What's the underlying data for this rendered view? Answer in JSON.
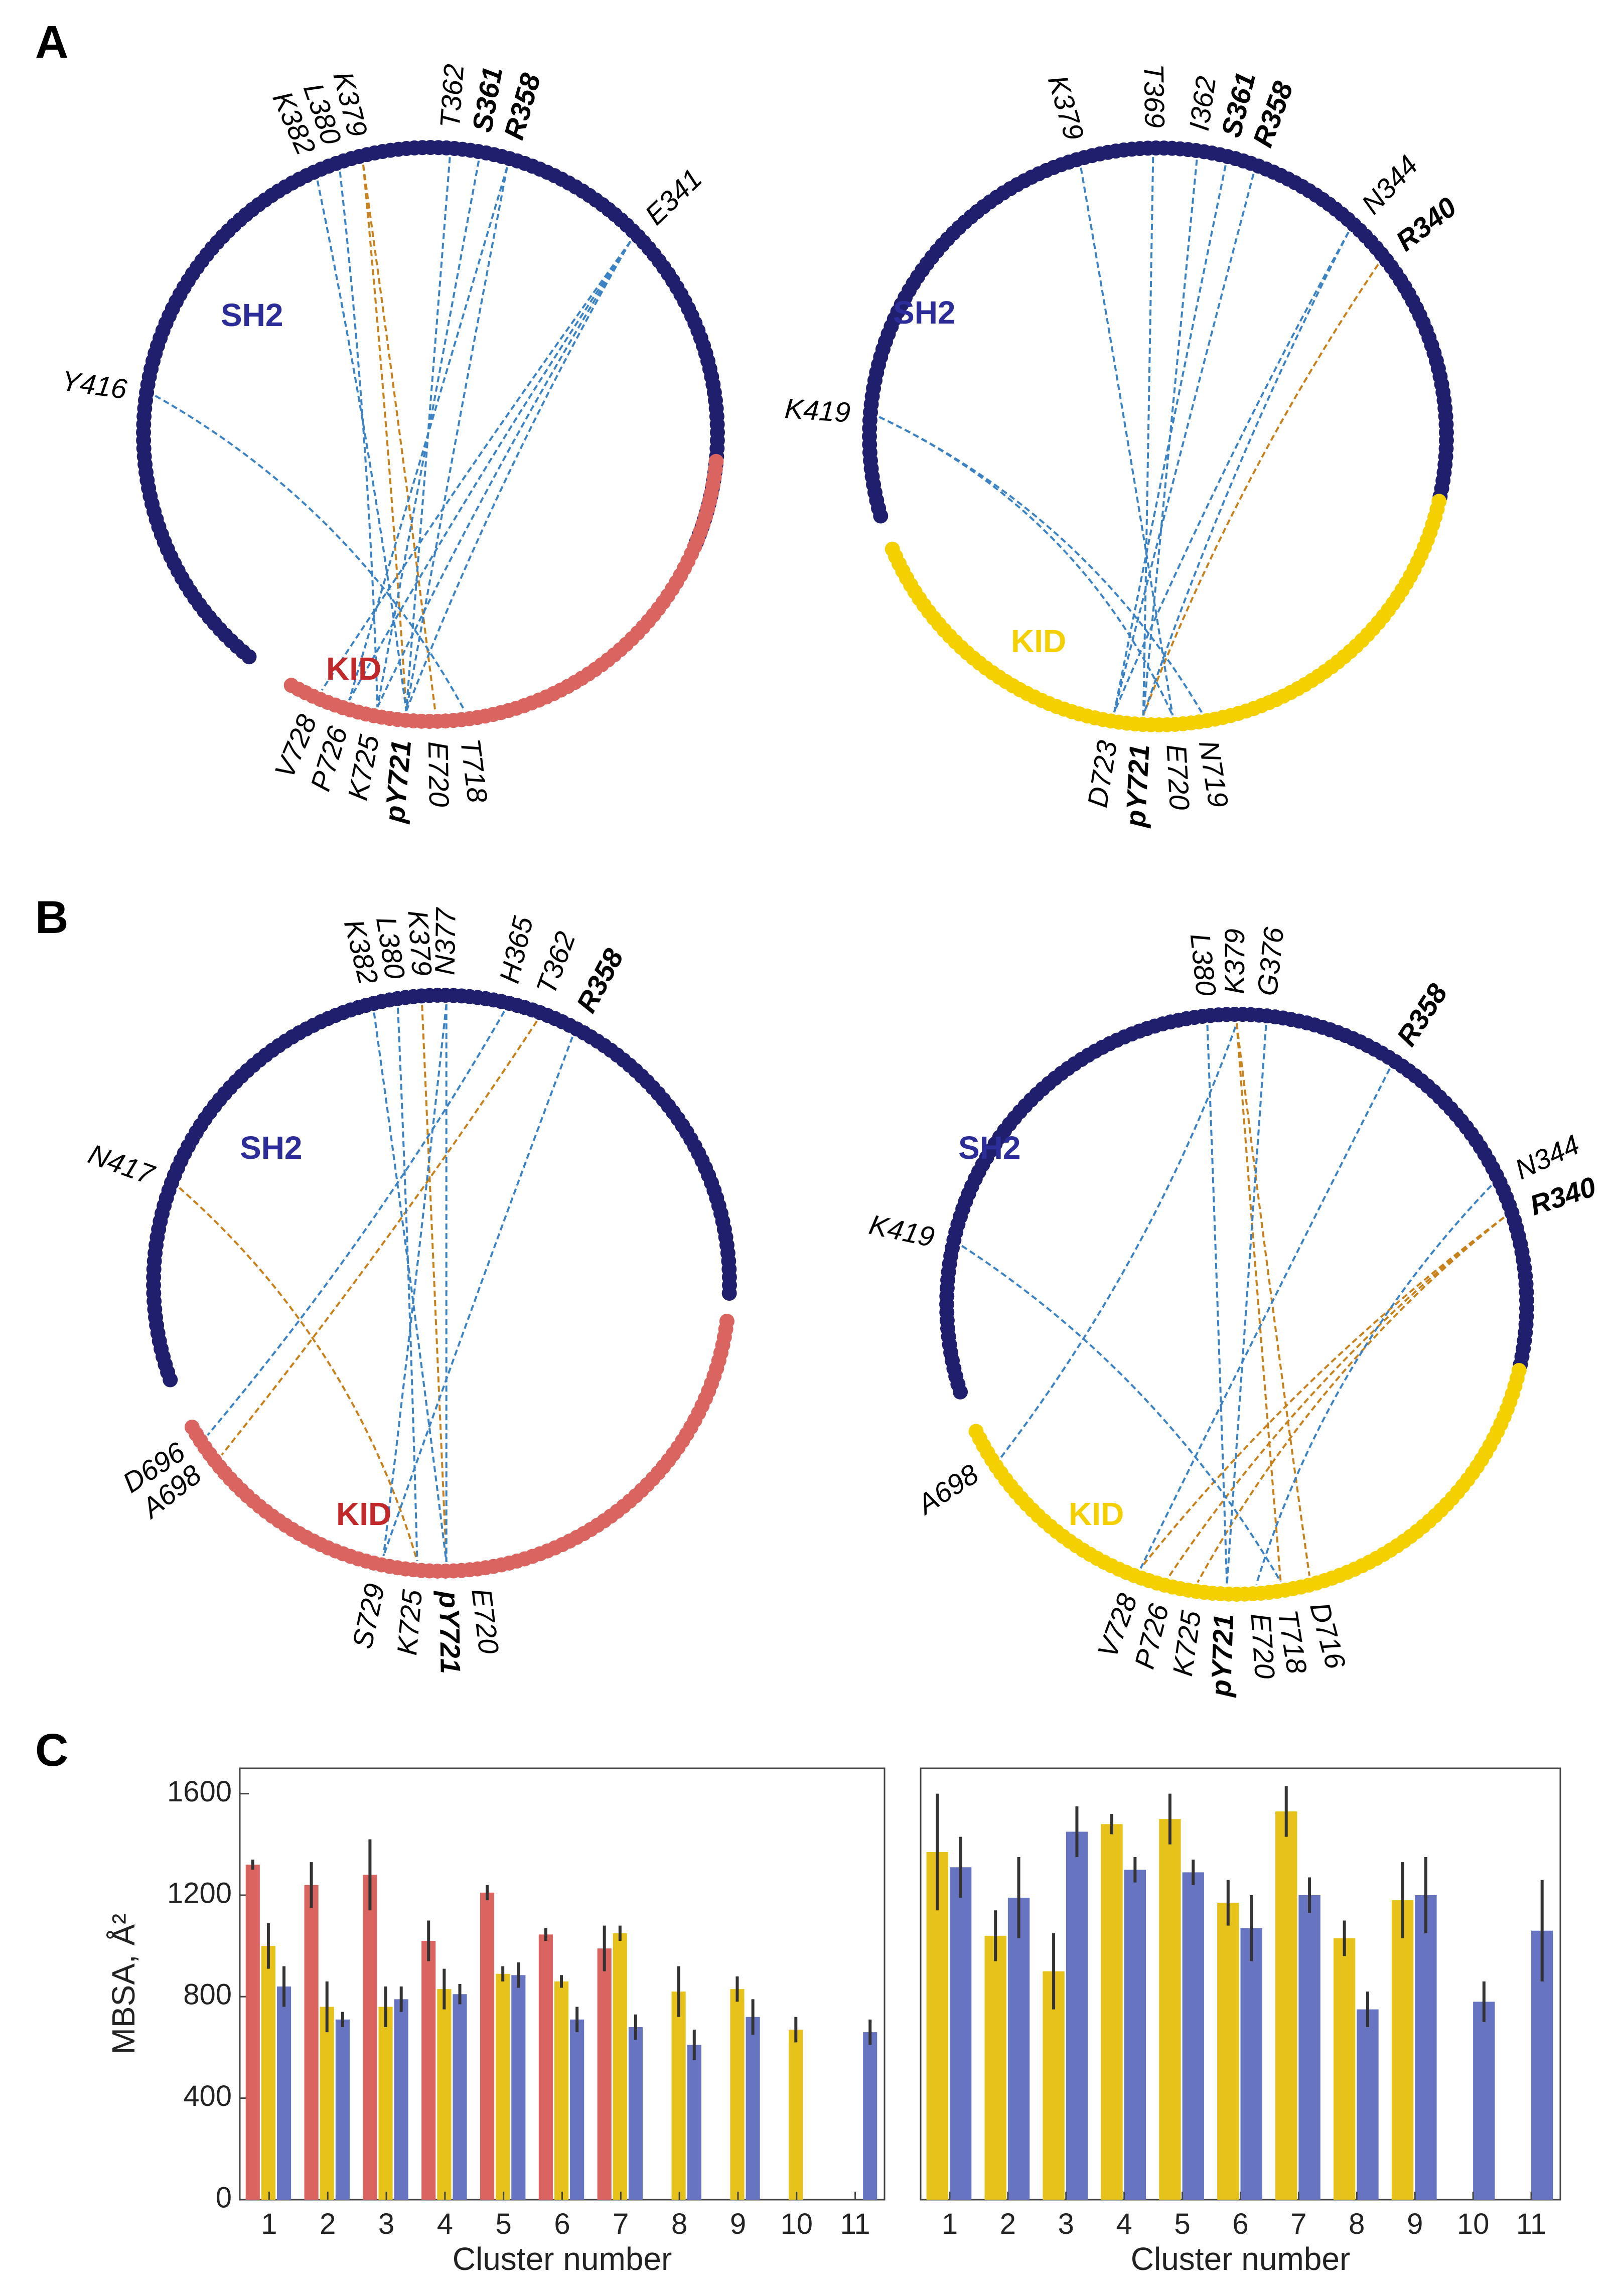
{
  "panels": {
    "a": "A",
    "b": "B",
    "c": "C"
  },
  "colors": {
    "sh2": "#1f1f6e",
    "kid_red": "#d96460",
    "kid_yellow": "#f5d000",
    "link_blue": "#3a82c4",
    "link_orange": "#c8801a",
    "bar_red": "#d96460",
    "bar_yellow": "#e6c21a",
    "bar_blue": "#6674c2"
  },
  "circles": [
    {
      "name": "A-left",
      "kid": "red",
      "sh2_label": "SH2",
      "kid_label": "KID",
      "labels": [
        {
          "text": "K382",
          "ang": 114,
          "b": false
        },
        {
          "text": "L380",
          "ang": 109,
          "b": false
        },
        {
          "text": "K379",
          "ang": 104,
          "b": false
        },
        {
          "text": "T362",
          "ang": 86,
          "b": false
        },
        {
          "text": "S361",
          "ang": 80,
          "b": true
        },
        {
          "text": "R358",
          "ang": 74,
          "b": true
        },
        {
          "text": "E341",
          "ang": 44,
          "b": false
        },
        {
          "text": "Y416",
          "ang": 172,
          "b": false
        },
        {
          "text": "T718",
          "ang": 277,
          "b": false
        },
        {
          "text": "E720",
          "ang": 271,
          "b": false
        },
        {
          "text": "pY721",
          "ang": 265,
          "b": true
        },
        {
          "text": "K725",
          "ang": 259,
          "b": false
        },
        {
          "text": "P726",
          "ang": 253,
          "b": false
        },
        {
          "text": "V728",
          "ang": 247,
          "b": false
        }
      ],
      "links": [
        {
          "from": "K379",
          "to": "pY721",
          "c": "orange"
        },
        {
          "from": "K379",
          "to": "E720",
          "c": "orange"
        },
        {
          "from": "K382",
          "to": "pY721",
          "c": "blue"
        },
        {
          "from": "L380",
          "to": "K725",
          "c": "blue"
        },
        {
          "from": "T362",
          "to": "pY721",
          "c": "blue"
        },
        {
          "from": "S361",
          "to": "K725",
          "c": "blue"
        },
        {
          "from": "R358",
          "to": "P726",
          "c": "blue"
        },
        {
          "from": "R358",
          "to": "pY721",
          "c": "blue"
        },
        {
          "from": "E341",
          "to": "pY721",
          "c": "blue"
        },
        {
          "from": "E341",
          "to": "K725",
          "c": "blue"
        },
        {
          "from": "E341",
          "to": "P726",
          "c": "blue"
        },
        {
          "from": "E341",
          "to": "V728",
          "c": "blue"
        },
        {
          "from": "Y416",
          "to": "T718",
          "c": "blue"
        }
      ]
    },
    {
      "name": "A-right",
      "kid": "yellow",
      "sh2_label": "SH2",
      "kid_label": "KID",
      "labels": [
        {
          "text": "K379",
          "ang": 106,
          "b": false
        },
        {
          "text": "T369",
          "ang": 91,
          "b": false
        },
        {
          "text": "I362",
          "ang": 82,
          "b": false
        },
        {
          "text": "S361",
          "ang": 76,
          "b": true
        },
        {
          "text": "R358",
          "ang": 70,
          "b": true
        },
        {
          "text": "N344",
          "ang": 47,
          "b": false
        },
        {
          "text": "R340",
          "ang": 38,
          "b": true
        },
        {
          "text": "K419",
          "ang": 176,
          "b": false
        },
        {
          "text": "N719",
          "ang": 279,
          "b": false
        },
        {
          "text": "E720",
          "ang": 273,
          "b": false
        },
        {
          "text": "pY721",
          "ang": 267,
          "b": true
        },
        {
          "text": "D723",
          "ang": 261,
          "b": false
        }
      ],
      "links": [
        {
          "from": "R340",
          "to": "pY721",
          "c": "orange"
        },
        {
          "from": "K379",
          "to": "E720",
          "c": "blue"
        },
        {
          "from": "T369",
          "to": "pY721",
          "c": "blue"
        },
        {
          "from": "I362",
          "to": "pY721",
          "c": "blue"
        },
        {
          "from": "S361",
          "to": "D723",
          "c": "blue"
        },
        {
          "from": "R358",
          "to": "D723",
          "c": "blue"
        },
        {
          "from": "N344",
          "to": "pY721",
          "c": "blue"
        },
        {
          "from": "N344",
          "to": "D723",
          "c": "blue"
        },
        {
          "from": "K419",
          "to": "N719",
          "c": "blue"
        },
        {
          "from": "K419",
          "to": "E720",
          "c": "blue"
        }
      ]
    },
    {
      "name": "B-left",
      "kid": "red",
      "sh2_label": "SH2",
      "kid_label": "KID",
      "labels": [
        {
          "text": "K382",
          "ang": 104,
          "b": false
        },
        {
          "text": "L380",
          "ang": 99,
          "b": false
        },
        {
          "text": "K379",
          "ang": 94,
          "b": false
        },
        {
          "text": "N377",
          "ang": 89,
          "b": false
        },
        {
          "text": "H365",
          "ang": 77,
          "b": false
        },
        {
          "text": "T362",
          "ang": 70,
          "b": false
        },
        {
          "text": "R358",
          "ang": 62,
          "b": true
        },
        {
          "text": "N417",
          "ang": 160,
          "b": false
        },
        {
          "text": "D696",
          "ang": 213,
          "b": false
        },
        {
          "text": "A698",
          "ang": 218,
          "b": false
        },
        {
          "text": "E720",
          "ang": 277,
          "b": false
        },
        {
          "text": "pY721",
          "ang": 271,
          "b": true
        },
        {
          "text": "K725",
          "ang": 265,
          "b": false
        },
        {
          "text": "S729",
          "ang": 258,
          "b": false
        }
      ],
      "links": [
        {
          "from": "K379",
          "to": "pY721",
          "c": "orange"
        },
        {
          "from": "T362",
          "to": "A698",
          "c": "orange"
        },
        {
          "from": "N417",
          "to": "K725",
          "c": "orange"
        },
        {
          "from": "K382",
          "to": "pY721",
          "c": "blue"
        },
        {
          "from": "L380",
          "to": "K725",
          "c": "blue"
        },
        {
          "from": "N377",
          "to": "S729",
          "c": "blue"
        },
        {
          "from": "H365",
          "to": "D696",
          "c": "blue"
        },
        {
          "from": "R358",
          "to": "S729",
          "c": "blue"
        },
        {
          "from": "N377",
          "to": "pY721",
          "c": "blue"
        }
      ]
    },
    {
      "name": "B-right",
      "kid": "yellow",
      "sh2_label": "SH2",
      "kid_label": "KID",
      "labels": [
        {
          "text": "L380",
          "ang": 96,
          "b": false
        },
        {
          "text": "K379",
          "ang": 90,
          "b": false
        },
        {
          "text": "G376",
          "ang": 84,
          "b": false
        },
        {
          "text": "R358",
          "ang": 57,
          "b": true
        },
        {
          "text": "N344",
          "ang": 25,
          "b": false
        },
        {
          "text": "R340",
          "ang": 18,
          "b": true
        },
        {
          "text": "K419",
          "ang": 168,
          "b": false
        },
        {
          "text": "A698",
          "ang": 213,
          "b": false
        },
        {
          "text": "D716",
          "ang": 285,
          "b": false
        },
        {
          "text": "T718",
          "ang": 279,
          "b": false
        },
        {
          "text": "E720",
          "ang": 274,
          "b": false
        },
        {
          "text": "pY721",
          "ang": 268,
          "b": true
        },
        {
          "text": "K725",
          "ang": 262,
          "b": false
        },
        {
          "text": "P726",
          "ang": 256,
          "b": false
        },
        {
          "text": "V728",
          "ang": 250,
          "b": false
        }
      ],
      "links": [
        {
          "from": "K379",
          "to": "D716",
          "c": "orange"
        },
        {
          "from": "K379",
          "to": "T718",
          "c": "orange"
        },
        {
          "from": "R340",
          "to": "K725",
          "c": "orange"
        },
        {
          "from": "R340",
          "to": "P726",
          "c": "orange"
        },
        {
          "from": "R340",
          "to": "V728",
          "c": "orange"
        },
        {
          "from": "L380",
          "to": "pY721",
          "c": "blue"
        },
        {
          "from": "G376",
          "to": "pY721",
          "c": "blue"
        },
        {
          "from": "R358",
          "to": "V728",
          "c": "blue"
        },
        {
          "from": "N344",
          "to": "E720",
          "c": "blue"
        },
        {
          "from": "K419",
          "to": "T718",
          "c": "blue"
        },
        {
          "from": "A698",
          "to": "K379",
          "c": "blue"
        }
      ]
    }
  ],
  "chart_data": [
    {
      "type": "bar",
      "ylabel": "MBSA, Å²",
      "xlabel": "Cluster number",
      "ylim": [
        0,
        1700
      ],
      "yticks": [
        0,
        400,
        800,
        1200,
        1600
      ],
      "categories": [
        "1",
        "2",
        "3",
        "4",
        "5",
        "6",
        "7",
        "8",
        "9",
        "10",
        "11"
      ],
      "series": [
        {
          "color": "red",
          "values": [
            1320,
            1240,
            1280,
            1020,
            1210,
            1045,
            990,
            null,
            null,
            null,
            null
          ],
          "err": [
            20,
            90,
            140,
            80,
            30,
            25,
            90,
            null,
            null,
            null,
            null
          ]
        },
        {
          "color": "yellow",
          "values": [
            1000,
            760,
            760,
            830,
            890,
            860,
            1050,
            820,
            830,
            670,
            null
          ],
          "err": [
            90,
            100,
            80,
            80,
            30,
            25,
            30,
            100,
            50,
            50,
            null
          ]
        },
        {
          "color": "blue",
          "values": [
            840,
            710,
            790,
            810,
            885,
            710,
            680,
            610,
            720,
            null,
            660
          ],
          "err": [
            80,
            30,
            50,
            40,
            50,
            50,
            50,
            60,
            70,
            null,
            50
          ]
        }
      ]
    },
    {
      "type": "bar",
      "ylabel": "",
      "xlabel": "Cluster number",
      "ylim": [
        0,
        1700
      ],
      "categories": [
        "1",
        "2",
        "3",
        "4",
        "5",
        "6",
        "7",
        "8",
        "9",
        "10",
        "11"
      ],
      "series": [
        {
          "color": "yellow",
          "values": [
            1370,
            1040,
            900,
            1480,
            1500,
            1170,
            1530,
            1030,
            1180,
            null,
            null
          ],
          "err": [
            230,
            100,
            150,
            40,
            100,
            90,
            100,
            70,
            150,
            null,
            null
          ]
        },
        {
          "color": "blue",
          "values": [
            1310,
            1190,
            1450,
            1300,
            1290,
            1070,
            1200,
            750,
            1200,
            780,
            1060
          ],
          "err": [
            120,
            160,
            100,
            50,
            50,
            130,
            70,
            70,
            150,
            80,
            200
          ]
        }
      ]
    }
  ]
}
